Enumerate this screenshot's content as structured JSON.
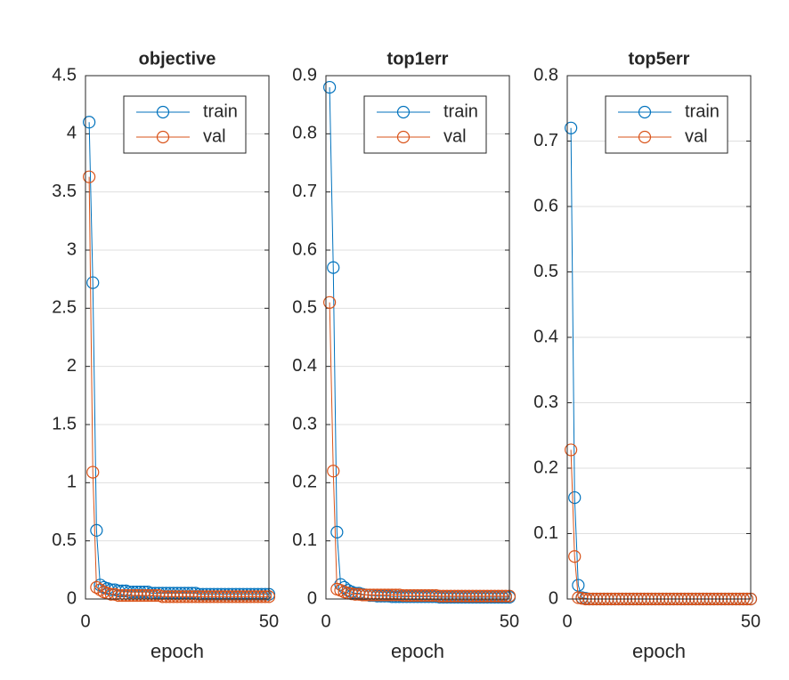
{
  "chart_data": [
    {
      "type": "line",
      "title": "objective",
      "xlabel": "epoch",
      "grid": true,
      "legend": "northeast",
      "x": [
        1,
        2,
        3,
        4,
        5,
        6,
        7,
        8,
        9,
        10,
        11,
        12,
        13,
        14,
        15,
        16,
        17,
        18,
        19,
        20,
        21,
        22,
        23,
        24,
        25,
        26,
        27,
        28,
        29,
        30,
        31,
        32,
        33,
        34,
        35,
        36,
        37,
        38,
        39,
        40,
        41,
        42,
        43,
        44,
        45,
        46,
        47,
        48,
        49,
        50
      ],
      "xlim": [
        0,
        50
      ],
      "xticks": [
        0,
        50
      ],
      "ylim": [
        0,
        4.5
      ],
      "yticks": [
        0,
        0.5,
        1,
        1.5,
        2,
        2.5,
        3,
        3.5,
        4,
        4.5
      ],
      "series": [
        {
          "name": "train",
          "color": "#0072bd",
          "values": [
            4.1,
            2.72,
            0.59,
            0.12,
            0.1,
            0.09,
            0.08,
            0.08,
            0.07,
            0.07,
            0.07,
            0.06,
            0.06,
            0.06,
            0.06,
            0.06,
            0.06,
            0.05,
            0.05,
            0.05,
            0.05,
            0.05,
            0.05,
            0.05,
            0.05,
            0.05,
            0.05,
            0.05,
            0.05,
            0.05,
            0.04,
            0.04,
            0.04,
            0.04,
            0.04,
            0.04,
            0.04,
            0.04,
            0.04,
            0.04,
            0.04,
            0.04,
            0.04,
            0.04,
            0.04,
            0.04,
            0.04,
            0.04,
            0.04,
            0.04
          ]
        },
        {
          "name": "val",
          "color": "#d95319",
          "values": [
            3.63,
            1.09,
            0.1,
            0.08,
            0.06,
            0.05,
            0.04,
            0.04,
            0.03,
            0.03,
            0.03,
            0.03,
            0.03,
            0.03,
            0.03,
            0.03,
            0.03,
            0.03,
            0.03,
            0.03,
            0.02,
            0.02,
            0.02,
            0.02,
            0.02,
            0.02,
            0.02,
            0.02,
            0.02,
            0.02,
            0.02,
            0.02,
            0.02,
            0.02,
            0.02,
            0.02,
            0.02,
            0.02,
            0.02,
            0.02,
            0.02,
            0.02,
            0.02,
            0.02,
            0.02,
            0.02,
            0.02,
            0.02,
            0.02,
            0.02
          ]
        }
      ]
    },
    {
      "type": "line",
      "title": "top1err",
      "xlabel": "epoch",
      "grid": true,
      "legend": "northeast",
      "x": [
        1,
        2,
        3,
        4,
        5,
        6,
        7,
        8,
        9,
        10,
        11,
        12,
        13,
        14,
        15,
        16,
        17,
        18,
        19,
        20,
        21,
        22,
        23,
        24,
        25,
        26,
        27,
        28,
        29,
        30,
        31,
        32,
        33,
        34,
        35,
        36,
        37,
        38,
        39,
        40,
        41,
        42,
        43,
        44,
        45,
        46,
        47,
        48,
        49,
        50
      ],
      "xlim": [
        0,
        50
      ],
      "xticks": [
        0,
        50
      ],
      "ylim": [
        0,
        0.9
      ],
      "yticks": [
        0,
        0.1,
        0.2,
        0.3,
        0.4,
        0.5,
        0.6,
        0.7,
        0.8,
        0.9
      ],
      "series": [
        {
          "name": "train",
          "color": "#0072bd",
          "values": [
            0.88,
            0.57,
            0.115,
            0.025,
            0.02,
            0.015,
            0.012,
            0.01,
            0.01,
            0.008,
            0.007,
            0.006,
            0.006,
            0.005,
            0.005,
            0.005,
            0.005,
            0.004,
            0.004,
            0.004,
            0.004,
            0.004,
            0.004,
            0.004,
            0.004,
            0.004,
            0.004,
            0.004,
            0.004,
            0.004,
            0.003,
            0.003,
            0.003,
            0.003,
            0.003,
            0.003,
            0.003,
            0.003,
            0.003,
            0.003,
            0.003,
            0.003,
            0.003,
            0.003,
            0.003,
            0.003,
            0.003,
            0.003,
            0.003,
            0.003
          ]
        },
        {
          "name": "val",
          "color": "#d95319",
          "values": [
            0.51,
            0.22,
            0.017,
            0.015,
            0.012,
            0.01,
            0.009,
            0.008,
            0.008,
            0.007,
            0.007,
            0.007,
            0.007,
            0.007,
            0.007,
            0.007,
            0.007,
            0.007,
            0.007,
            0.007,
            0.006,
            0.006,
            0.006,
            0.006,
            0.006,
            0.006,
            0.006,
            0.006,
            0.006,
            0.006,
            0.005,
            0.005,
            0.005,
            0.005,
            0.005,
            0.005,
            0.005,
            0.005,
            0.005,
            0.005,
            0.005,
            0.005,
            0.005,
            0.005,
            0.005,
            0.005,
            0.005,
            0.005,
            0.005,
            0.005
          ]
        }
      ]
    },
    {
      "type": "line",
      "title": "top5err",
      "xlabel": "epoch",
      "grid": true,
      "legend": "northeast",
      "x": [
        1,
        2,
        3,
        4,
        5,
        6,
        7,
        8,
        9,
        10,
        11,
        12,
        13,
        14,
        15,
        16,
        17,
        18,
        19,
        20,
        21,
        22,
        23,
        24,
        25,
        26,
        27,
        28,
        29,
        30,
        31,
        32,
        33,
        34,
        35,
        36,
        37,
        38,
        39,
        40,
        41,
        42,
        43,
        44,
        45,
        46,
        47,
        48,
        49,
        50
      ],
      "xlim": [
        0,
        50
      ],
      "xticks": [
        0,
        50
      ],
      "ylim": [
        0,
        0.8
      ],
      "yticks": [
        0,
        0.1,
        0.2,
        0.3,
        0.4,
        0.5,
        0.6,
        0.7,
        0.8
      ],
      "series": [
        {
          "name": "train",
          "color": "#0072bd",
          "values": [
            0.72,
            0.155,
            0.021,
            0.002,
            0.001,
            0,
            0,
            0,
            0,
            0,
            0,
            0,
            0,
            0,
            0,
            0,
            0,
            0,
            0,
            0,
            0,
            0,
            0,
            0,
            0,
            0,
            0,
            0,
            0,
            0,
            0,
            0,
            0,
            0,
            0,
            0,
            0,
            0,
            0,
            0,
            0,
            0,
            0,
            0,
            0,
            0,
            0,
            0,
            0,
            0
          ]
        },
        {
          "name": "val",
          "color": "#d95319",
          "values": [
            0.228,
            0.065,
            0.002,
            0.001,
            0,
            0,
            0,
            0,
            0,
            0,
            0,
            0,
            0,
            0,
            0,
            0,
            0,
            0,
            0,
            0,
            0,
            0,
            0,
            0,
            0,
            0,
            0,
            0,
            0,
            0,
            0,
            0,
            0,
            0,
            0,
            0,
            0,
            0,
            0,
            0,
            0,
            0,
            0,
            0,
            0,
            0,
            0,
            0,
            0,
            0
          ]
        }
      ]
    }
  ]
}
